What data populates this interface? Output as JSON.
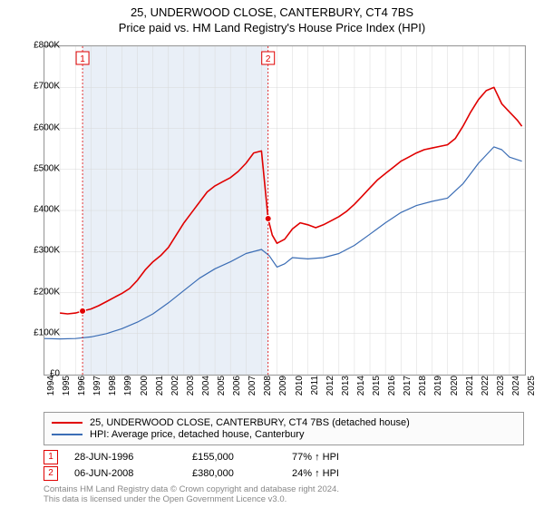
{
  "title": {
    "line1": "25, UNDERWOOD CLOSE, CANTERBURY, CT4 7BS",
    "line2": "Price paid vs. HM Land Registry's House Price Index (HPI)"
  },
  "chart": {
    "type": "line",
    "x_start_year": 1994,
    "x_end_year": 2025,
    "ylim": [
      0,
      800000
    ],
    "ytick_step": 100000,
    "ytick_prefix": "£",
    "ytick_suffix": "K",
    "background_color": "#ffffff",
    "grid_color": "#d8d8d8",
    "plot_border_color": "#999999",
    "yticks": [
      {
        "v": 0,
        "label": "£0"
      },
      {
        "v": 100000,
        "label": "£100K"
      },
      {
        "v": 200000,
        "label": "£200K"
      },
      {
        "v": 300000,
        "label": "£300K"
      },
      {
        "v": 400000,
        "label": "£400K"
      },
      {
        "v": 500000,
        "label": "£500K"
      },
      {
        "v": 600000,
        "label": "£600K"
      },
      {
        "v": 700000,
        "label": "£700K"
      },
      {
        "v": 800000,
        "label": "£800K"
      }
    ],
    "xticks": [
      1994,
      1995,
      1996,
      1997,
      1998,
      1999,
      2000,
      2001,
      2002,
      2003,
      2004,
      2005,
      2006,
      2007,
      2008,
      2009,
      2010,
      2011,
      2012,
      2013,
      2014,
      2015,
      2016,
      2017,
      2018,
      2019,
      2020,
      2021,
      2022,
      2023,
      2024,
      2025
    ],
    "series": [
      {
        "name": "price_paid",
        "color": "#e00000",
        "width": 1.6,
        "data": [
          [
            1995.0,
            150000
          ],
          [
            1995.5,
            148000
          ],
          [
            1996.0,
            150000
          ],
          [
            1996.46,
            155000
          ],
          [
            1997.0,
            160000
          ],
          [
            1997.5,
            168000
          ],
          [
            1998.0,
            178000
          ],
          [
            1998.5,
            188000
          ],
          [
            1999.0,
            198000
          ],
          [
            1999.5,
            210000
          ],
          [
            2000.0,
            230000
          ],
          [
            2000.5,
            255000
          ],
          [
            2001.0,
            275000
          ],
          [
            2001.5,
            290000
          ],
          [
            2002.0,
            310000
          ],
          [
            2002.5,
            340000
          ],
          [
            2003.0,
            370000
          ],
          [
            2003.5,
            395000
          ],
          [
            2004.0,
            420000
          ],
          [
            2004.5,
            445000
          ],
          [
            2005.0,
            460000
          ],
          [
            2005.5,
            470000
          ],
          [
            2006.0,
            480000
          ],
          [
            2006.5,
            495000
          ],
          [
            2007.0,
            515000
          ],
          [
            2007.5,
            540000
          ],
          [
            2008.0,
            545000
          ],
          [
            2008.43,
            380000
          ],
          [
            2008.7,
            340000
          ],
          [
            2009.0,
            320000
          ],
          [
            2009.5,
            330000
          ],
          [
            2010.0,
            355000
          ],
          [
            2010.5,
            370000
          ],
          [
            2011.0,
            365000
          ],
          [
            2011.5,
            358000
          ],
          [
            2012.0,
            365000
          ],
          [
            2012.5,
            375000
          ],
          [
            2013.0,
            385000
          ],
          [
            2013.5,
            398000
          ],
          [
            2014.0,
            415000
          ],
          [
            2014.5,
            435000
          ],
          [
            2015.0,
            455000
          ],
          [
            2015.5,
            475000
          ],
          [
            2016.0,
            490000
          ],
          [
            2016.5,
            505000
          ],
          [
            2017.0,
            520000
          ],
          [
            2017.5,
            530000
          ],
          [
            2018.0,
            540000
          ],
          [
            2018.5,
            548000
          ],
          [
            2019.0,
            552000
          ],
          [
            2019.5,
            556000
          ],
          [
            2020.0,
            560000
          ],
          [
            2020.5,
            575000
          ],
          [
            2021.0,
            605000
          ],
          [
            2021.5,
            640000
          ],
          [
            2022.0,
            670000
          ],
          [
            2022.5,
            692000
          ],
          [
            2023.0,
            700000
          ],
          [
            2023.5,
            660000
          ],
          [
            2024.0,
            640000
          ],
          [
            2024.5,
            620000
          ],
          [
            2024.8,
            605000
          ]
        ]
      },
      {
        "name": "hpi",
        "color": "#3b6db5",
        "width": 1.2,
        "data": [
          [
            1994.0,
            88000
          ],
          [
            1995.0,
            87000
          ],
          [
            1996.0,
            88000
          ],
          [
            1997.0,
            92000
          ],
          [
            1998.0,
            100000
          ],
          [
            1999.0,
            112000
          ],
          [
            2000.0,
            128000
          ],
          [
            2001.0,
            148000
          ],
          [
            2002.0,
            175000
          ],
          [
            2003.0,
            205000
          ],
          [
            2004.0,
            235000
          ],
          [
            2005.0,
            258000
          ],
          [
            2006.0,
            275000
          ],
          [
            2007.0,
            295000
          ],
          [
            2008.0,
            305000
          ],
          [
            2008.5,
            290000
          ],
          [
            2009.0,
            262000
          ],
          [
            2009.5,
            270000
          ],
          [
            2010.0,
            285000
          ],
          [
            2011.0,
            282000
          ],
          [
            2012.0,
            285000
          ],
          [
            2013.0,
            295000
          ],
          [
            2014.0,
            315000
          ],
          [
            2015.0,
            342000
          ],
          [
            2016.0,
            370000
          ],
          [
            2017.0,
            395000
          ],
          [
            2018.0,
            412000
          ],
          [
            2019.0,
            422000
          ],
          [
            2020.0,
            430000
          ],
          [
            2021.0,
            465000
          ],
          [
            2022.0,
            515000
          ],
          [
            2023.0,
            555000
          ],
          [
            2023.5,
            548000
          ],
          [
            2024.0,
            530000
          ],
          [
            2024.8,
            520000
          ]
        ]
      }
    ],
    "sale_markers": [
      {
        "num": "1",
        "year": 1996.46,
        "value": 155000
      },
      {
        "num": "2",
        "year": 2008.43,
        "value": 380000
      }
    ],
    "marker_box_border": "#e00000",
    "marker_text_color": "#e00000",
    "marker_dash_color": "#e00000",
    "marker_dot_fill": "#e00000",
    "marker_dot_stroke": "#ffffff",
    "shade_fill": "#e9eff7"
  },
  "legend": {
    "border_color": "#999999",
    "background_color": "#fbfbfb",
    "items": [
      {
        "color": "#e00000",
        "label": "25, UNDERWOOD CLOSE, CANTERBURY, CT4 7BS (detached house)"
      },
      {
        "color": "#3b6db5",
        "label": "HPI: Average price, detached house, Canterbury"
      }
    ]
  },
  "sales": [
    {
      "num": "1",
      "date": "28-JUN-1996",
      "price": "£155,000",
      "pct": "77% ↑ HPI"
    },
    {
      "num": "2",
      "date": "06-JUN-2008",
      "price": "£380,000",
      "pct": "24% ↑ HPI"
    }
  ],
  "footer": {
    "line1": "Contains HM Land Registry data © Crown copyright and database right 2024.",
    "line2": "This data is licensed under the Open Government Licence v3.0."
  },
  "label_fontsize": 10,
  "title_fontsize": 13,
  "legend_fontsize": 11
}
